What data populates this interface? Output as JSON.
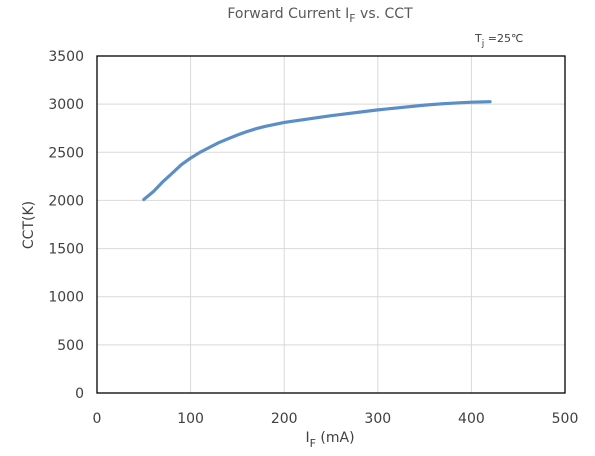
{
  "chart_data": {
    "type": "line",
    "title_main": "Forward Current I",
    "title_sub": "F",
    "title_rest": " vs. CCT",
    "annotation_main": "T",
    "annotation_sub": "j",
    "annotation_rest": " =25℃",
    "xlabel_main": "I",
    "xlabel_sub": "F",
    "xlabel_rest": " (mA)",
    "ylabel": "CCT(K)",
    "xlim": [
      0,
      500
    ],
    "ylim": [
      0,
      3500
    ],
    "xticks": [
      "0",
      "100",
      "200",
      "300",
      "400",
      "500"
    ],
    "yticks": [
      "0",
      "500",
      "1000",
      "1500",
      "2000",
      "2500",
      "3000",
      "3500"
    ],
    "grid": "horizontal and vertical",
    "series": [
      {
        "color": "#5b8ec7",
        "x": [
          50,
          60,
          70,
          80,
          90,
          100,
          110,
          120,
          130,
          140,
          150,
          160,
          170,
          180,
          200,
          250,
          300,
          350,
          370,
          400,
          420
        ],
        "y": [
          2010,
          2090,
          2190,
          2280,
          2370,
          2440,
          2500,
          2550,
          2600,
          2640,
          2680,
          2715,
          2745,
          2770,
          2810,
          2880,
          2940,
          2990,
          3005,
          3020,
          3025
        ]
      }
    ]
  }
}
